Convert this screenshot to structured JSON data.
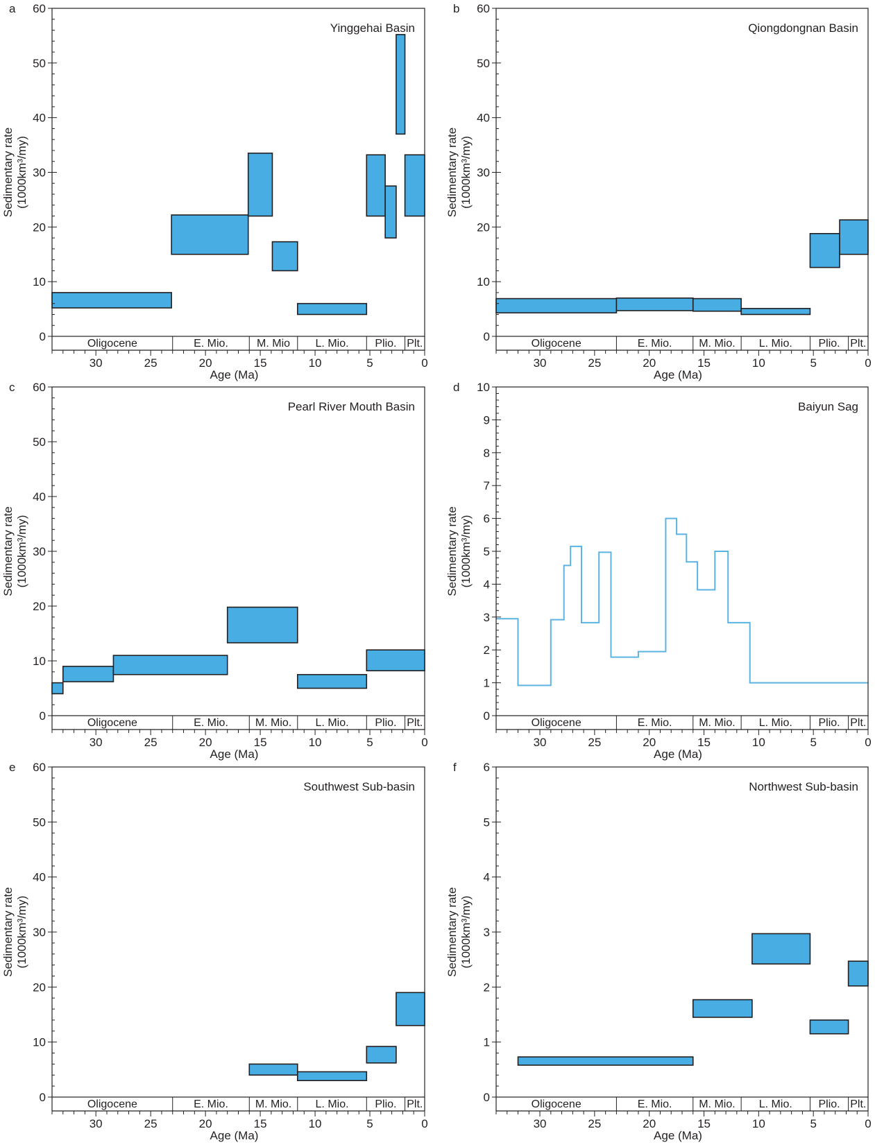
{
  "figure": {
    "colors": {
      "fill": "#47ade2",
      "stroke": "#231f20",
      "line": "#5ab4e2"
    },
    "xlabel": "Age (Ma)",
    "ylabel_line1": "Sedimentary rate",
    "ylabel_line2": "(1000km³/my)"
  },
  "chart_data": [
    {
      "panel": "a",
      "type": "bar",
      "title": "Yinggehai Basin",
      "ylim": [
        0,
        60
      ],
      "xlim": [
        34,
        0
      ],
      "yticks": [
        0,
        10,
        20,
        30,
        40,
        50,
        60
      ],
      "xticks": [
        30,
        25,
        20,
        15,
        10,
        5,
        0
      ],
      "epochs": [
        {
          "label": "Oligocene",
          "start": 34,
          "end": 23
        },
        {
          "label": "E. Mio.",
          "start": 23,
          "end": 16
        },
        {
          "label": "M. Mio",
          "start": 16,
          "end": 11.6
        },
        {
          "label": "L. Mio.",
          "start": 11.6,
          "end": 5.3
        },
        {
          "label": "Plio.",
          "start": 5.3,
          "end": 1.8
        },
        {
          "label": "Plt.",
          "start": 1.8,
          "end": 0
        }
      ],
      "boxes": [
        {
          "x0": 34,
          "x1": 23.1,
          "y0": 5.2,
          "y1": 8
        },
        {
          "x0": 23.1,
          "x1": 16.1,
          "y0": 15,
          "y1": 22.2
        },
        {
          "x0": 16.1,
          "x1": 13.9,
          "y0": 22,
          "y1": 33.5
        },
        {
          "x0": 13.9,
          "x1": 11.6,
          "y0": 12,
          "y1": 17.3
        },
        {
          "x0": 11.6,
          "x1": 5.3,
          "y0": 4,
          "y1": 6
        },
        {
          "x0": 5.3,
          "x1": 3.6,
          "y0": 22,
          "y1": 33.2
        },
        {
          "x0": 3.6,
          "x1": 2.6,
          "y0": 18,
          "y1": 27.5
        },
        {
          "x0": 2.6,
          "x1": 1.8,
          "y0": 37,
          "y1": 55.2
        },
        {
          "x0": 1.8,
          "x1": 0,
          "y0": 22,
          "y1": 33.2
        }
      ]
    },
    {
      "panel": "b",
      "type": "bar",
      "title": "Qiongdongnan Basin",
      "ylim": [
        0,
        60
      ],
      "xlim": [
        34,
        0
      ],
      "yticks": [
        0,
        10,
        20,
        30,
        40,
        50,
        60
      ],
      "xticks": [
        30,
        25,
        20,
        15,
        10,
        5,
        0
      ],
      "epochs": [
        {
          "label": "Oligocene",
          "start": 34,
          "end": 23
        },
        {
          "label": "E. Mio.",
          "start": 23,
          "end": 16
        },
        {
          "label": "M. Mio.",
          "start": 16,
          "end": 11.6
        },
        {
          "label": "L. Mio.",
          "start": 11.6,
          "end": 5.3
        },
        {
          "label": "Plio.",
          "start": 5.3,
          "end": 1.8
        },
        {
          "label": "Plt.",
          "start": 1.8,
          "end": 0
        }
      ],
      "boxes": [
        {
          "x0": 34,
          "x1": 23,
          "y0": 4.3,
          "y1": 6.9
        },
        {
          "x0": 23,
          "x1": 16,
          "y0": 4.7,
          "y1": 7
        },
        {
          "x0": 16,
          "x1": 11.6,
          "y0": 4.6,
          "y1": 6.9
        },
        {
          "x0": 11.6,
          "x1": 5.3,
          "y0": 4,
          "y1": 5.1
        },
        {
          "x0": 5.3,
          "x1": 2.6,
          "y0": 12.6,
          "y1": 18.8
        },
        {
          "x0": 2.6,
          "x1": 0,
          "y0": 15,
          "y1": 21.3
        }
      ]
    },
    {
      "panel": "c",
      "type": "bar",
      "title": "Pearl River Mouth Basin",
      "ylim": [
        0,
        60
      ],
      "xlim": [
        34,
        0
      ],
      "yticks": [
        0,
        10,
        20,
        30,
        40,
        50,
        60
      ],
      "xticks": [
        30,
        25,
        20,
        15,
        10,
        5,
        0
      ],
      "epochs": [
        {
          "label": "Oligocene",
          "start": 34,
          "end": 23
        },
        {
          "label": "E. Mio.",
          "start": 23,
          "end": 16
        },
        {
          "label": "M. Mio.",
          "start": 16,
          "end": 11.6
        },
        {
          "label": "L. Mio.",
          "start": 11.6,
          "end": 5.3
        },
        {
          "label": "Plio.",
          "start": 5.3,
          "end": 1.8
        },
        {
          "label": "Plt.",
          "start": 1.8,
          "end": 0
        }
      ],
      "boxes": [
        {
          "x0": 34,
          "x1": 33,
          "y0": 4,
          "y1": 6
        },
        {
          "x0": 33,
          "x1": 28.4,
          "y0": 6.2,
          "y1": 9
        },
        {
          "x0": 28.4,
          "x1": 18,
          "y0": 7.5,
          "y1": 11
        },
        {
          "x0": 18,
          "x1": 11.6,
          "y0": 13.3,
          "y1": 19.8
        },
        {
          "x0": 11.6,
          "x1": 5.3,
          "y0": 5,
          "y1": 7.5
        },
        {
          "x0": 5.3,
          "x1": 0,
          "y0": 8.2,
          "y1": 12
        }
      ]
    },
    {
      "panel": "d",
      "type": "line",
      "title": "Baiyun Sag",
      "ylim": [
        0,
        10
      ],
      "xlim": [
        34,
        0
      ],
      "yticks": [
        0,
        1,
        2,
        3,
        4,
        5,
        6,
        7,
        8,
        9,
        10
      ],
      "xticks": [
        30,
        25,
        20,
        15,
        10,
        5,
        0
      ],
      "epochs": [
        {
          "label": "Oligocene",
          "start": 34,
          "end": 23
        },
        {
          "label": "E. Mio.",
          "start": 23,
          "end": 16
        },
        {
          "label": "M. Mio.",
          "start": 16,
          "end": 11.6
        },
        {
          "label": "L. Mio.",
          "start": 11.6,
          "end": 5.3
        },
        {
          "label": "Plio.",
          "start": 5.3,
          "end": 1.8
        },
        {
          "label": "Plt.",
          "start": 1.8,
          "end": 0
        }
      ],
      "steps": [
        {
          "x0": 34,
          "x1": 32,
          "y": 2.95
        },
        {
          "x0": 32,
          "x1": 29,
          "y": 0.92
        },
        {
          "x0": 29,
          "x1": 27.8,
          "y": 2.92
        },
        {
          "x0": 27.8,
          "x1": 27.2,
          "y": 4.57
        },
        {
          "x0": 27.2,
          "x1": 26.2,
          "y": 5.15
        },
        {
          "x0": 26.2,
          "x1": 24.6,
          "y": 2.83
        },
        {
          "x0": 24.6,
          "x1": 23.5,
          "y": 4.97
        },
        {
          "x0": 23.5,
          "x1": 21,
          "y": 1.78
        },
        {
          "x0": 21,
          "x1": 18.5,
          "y": 1.95
        },
        {
          "x0": 18.5,
          "x1": 17.5,
          "y": 6.0
        },
        {
          "x0": 17.5,
          "x1": 16.6,
          "y": 5.52
        },
        {
          "x0": 16.6,
          "x1": 15.6,
          "y": 4.68
        },
        {
          "x0": 15.6,
          "x1": 14,
          "y": 3.83
        },
        {
          "x0": 14,
          "x1": 12.8,
          "y": 5.0
        },
        {
          "x0": 12.8,
          "x1": 10.8,
          "y": 2.83
        },
        {
          "x0": 10.8,
          "x1": 0,
          "y": 1.0
        }
      ]
    },
    {
      "panel": "e",
      "type": "bar",
      "title": "Southwest Sub-basin",
      "ylim": [
        0,
        60
      ],
      "xlim": [
        34,
        0
      ],
      "yticks": [
        0,
        10,
        20,
        30,
        40,
        50,
        60
      ],
      "xticks": [
        30,
        25,
        20,
        15,
        10,
        5,
        0
      ],
      "epochs": [
        {
          "label": "Oligocene",
          "start": 34,
          "end": 23
        },
        {
          "label": "E. Mio.",
          "start": 23,
          "end": 16
        },
        {
          "label": "M. Mio.",
          "start": 16,
          "end": 11.6
        },
        {
          "label": "L. Mio.",
          "start": 11.6,
          "end": 5.3
        },
        {
          "label": "Plio.",
          "start": 5.3,
          "end": 1.8
        },
        {
          "label": "Plt.",
          "start": 1.8,
          "end": 0
        }
      ],
      "boxes": [
        {
          "x0": 16,
          "x1": 11.6,
          "y0": 4,
          "y1": 6
        },
        {
          "x0": 11.6,
          "x1": 5.3,
          "y0": 3,
          "y1": 4.6
        },
        {
          "x0": 5.3,
          "x1": 2.6,
          "y0": 6.2,
          "y1": 9.2
        },
        {
          "x0": 2.6,
          "x1": 0,
          "y0": 13,
          "y1": 19
        }
      ]
    },
    {
      "panel": "f",
      "type": "bar",
      "title": "Northwest Sub-basin",
      "ylim": [
        0,
        6
      ],
      "xlim": [
        34,
        0
      ],
      "yticks": [
        0,
        1,
        2,
        3,
        4,
        5,
        6
      ],
      "xticks": [
        30,
        25,
        20,
        15,
        10,
        5,
        0
      ],
      "epochs": [
        {
          "label": "Oligocene",
          "start": 34,
          "end": 23
        },
        {
          "label": "E. Mio.",
          "start": 23,
          "end": 16
        },
        {
          "label": "M. Mio.",
          "start": 16,
          "end": 11.6
        },
        {
          "label": "L. Mio.",
          "start": 11.6,
          "end": 5.3
        },
        {
          "label": "Plio.",
          "start": 5.3,
          "end": 1.8
        },
        {
          "label": "Plt.",
          "start": 1.8,
          "end": 0
        }
      ],
      "boxes": [
        {
          "x0": 32,
          "x1": 16,
          "y0": 0.58,
          "y1": 0.73
        },
        {
          "x0": 16,
          "x1": 10.6,
          "y0": 1.45,
          "y1": 1.77
        },
        {
          "x0": 10.6,
          "x1": 5.3,
          "y0": 2.42,
          "y1": 2.97
        },
        {
          "x0": 5.3,
          "x1": 1.8,
          "y0": 1.15,
          "y1": 1.4
        },
        {
          "x0": 1.8,
          "x1": 0,
          "y0": 2.02,
          "y1": 2.47
        }
      ]
    }
  ]
}
